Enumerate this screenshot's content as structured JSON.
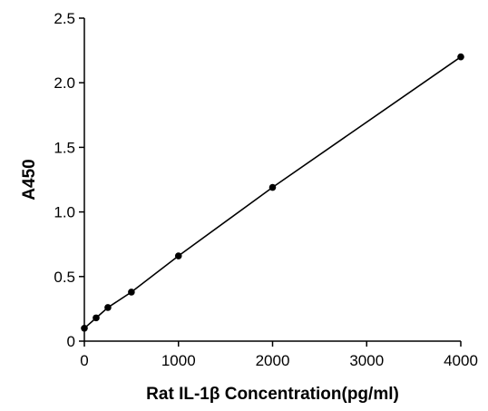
{
  "chart_data": {
    "type": "line",
    "title": "",
    "xlabel": "Rat IL-1β Concentration(pg/ml)",
    "ylabel": "A450",
    "xlim": [
      0,
      4000
    ],
    "ylim": [
      0,
      2.5
    ],
    "x_ticks": [
      0,
      1000,
      2000,
      3000,
      4000
    ],
    "x_tick_labels": [
      "0",
      "1000",
      "2000",
      "3000",
      "4000"
    ],
    "y_ticks": [
      0,
      0.5,
      1.0,
      1.5,
      2.0,
      2.5
    ],
    "y_tick_labels": [
      "0",
      "0.5",
      "1.0",
      "1.5",
      "2.0",
      "2.5"
    ],
    "grid": false,
    "legend": "none",
    "series": [
      {
        "x": [
          0,
          125,
          250,
          500,
          1000,
          2000,
          4000
        ],
        "y": [
          0.1,
          0.18,
          0.26,
          0.38,
          0.66,
          1.19,
          2.2
        ],
        "color": "#000000",
        "marker": "circle"
      }
    ]
  }
}
